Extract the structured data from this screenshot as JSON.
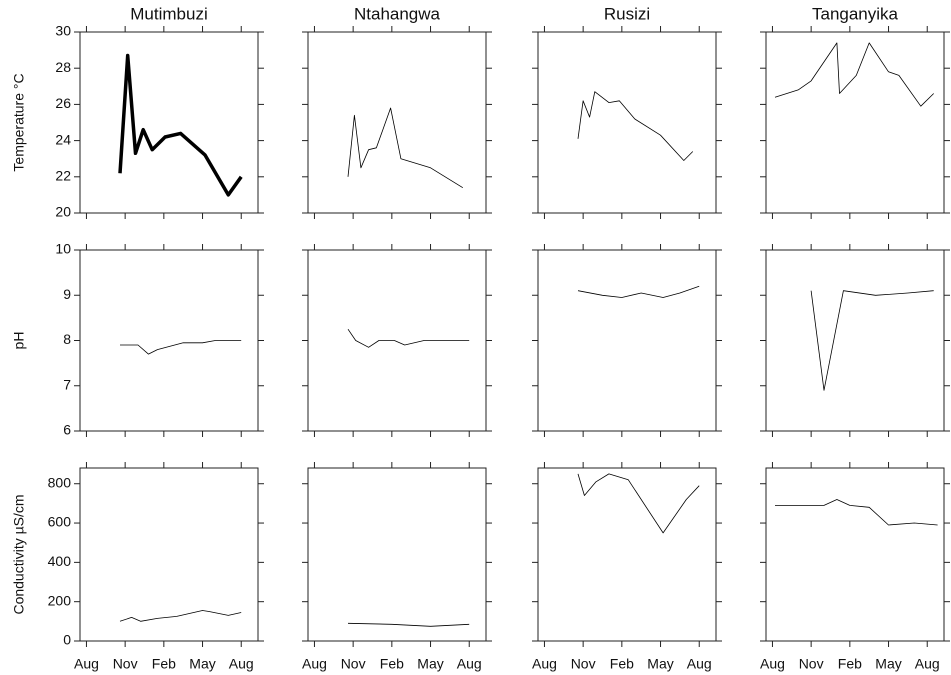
{
  "chart_data": [
    {
      "type": "line",
      "title": "Mutimbuzi",
      "ylabel": "Temperature °C",
      "x": [
        2.6,
        3.2,
        3.8,
        4.4,
        5.1,
        6.1,
        7.3,
        9.2,
        11.0,
        12.0
      ],
      "values": [
        22.2,
        28.7,
        23.3,
        24.6,
        23.5,
        24.2,
        24.4,
        23.2,
        21.0,
        22.0
      ],
      "color": "#000000",
      "linewidth": 3.5,
      "xlim": [
        -0.5,
        13.3
      ],
      "ylim": [
        20,
        30
      ],
      "xticks": [
        0,
        3,
        6,
        9,
        12
      ],
      "yticks": [
        20,
        22,
        24,
        26,
        28,
        30
      ],
      "ytick_labels": true
    },
    {
      "type": "line",
      "title": "Ntahangwa",
      "x": [
        2.6,
        3.1,
        3.6,
        4.2,
        4.8,
        5.9,
        6.7,
        9.0,
        11.5
      ],
      "values": [
        22.0,
        25.4,
        22.5,
        23.5,
        23.6,
        25.8,
        23.0,
        22.5,
        21.4
      ],
      "color": "#000000",
      "linewidth": 0.8,
      "xlim": [
        -0.5,
        13.3
      ],
      "ylim": [
        20,
        30
      ],
      "xticks": [
        0,
        3,
        6,
        9,
        12
      ],
      "yticks": [
        20,
        22,
        24,
        26,
        28,
        30
      ],
      "ytick_labels": false
    },
    {
      "type": "line",
      "title": "Rusizi",
      "x": [
        2.6,
        3.0,
        3.5,
        3.9,
        5.0,
        5.8,
        7.0,
        9.0,
        10.8,
        11.5
      ],
      "values": [
        24.1,
        26.2,
        25.3,
        26.7,
        26.1,
        26.2,
        25.2,
        24.3,
        22.9,
        23.4
      ],
      "color": "#000000",
      "linewidth": 0.8,
      "xlim": [
        -0.5,
        13.3
      ],
      "ylim": [
        20,
        30
      ],
      "xticks": [
        0,
        3,
        6,
        9,
        12
      ],
      "yticks": [
        20,
        22,
        24,
        26,
        28,
        30
      ],
      "ytick_labels": false
    },
    {
      "type": "line",
      "title": "Tanganyika",
      "x": [
        0.2,
        2.0,
        3.0,
        5.0,
        5.2,
        6.5,
        7.5,
        9.0,
        9.8,
        11.5,
        12.5
      ],
      "values": [
        26.4,
        26.8,
        27.3,
        29.4,
        26.6,
        27.6,
        29.4,
        27.8,
        27.6,
        25.9,
        26.6
      ],
      "color": "#000000",
      "linewidth": 0.8,
      "xlim": [
        -0.5,
        13.3
      ],
      "ylim": [
        20,
        30
      ],
      "xticks": [
        0,
        3,
        6,
        9,
        12
      ],
      "yticks": [
        20,
        22,
        24,
        26,
        28,
        30
      ],
      "ytick_labels": false
    },
    {
      "type": "line",
      "ylabel": "pH",
      "x": [
        2.6,
        4.0,
        4.8,
        5.5,
        7.5,
        9.0,
        10.0,
        12.0
      ],
      "values": [
        7.9,
        7.9,
        7.7,
        7.8,
        7.95,
        7.95,
        8.0,
        8.0
      ],
      "color": "#000000",
      "linewidth": 0.8,
      "xlim": [
        -0.5,
        13.3
      ],
      "ylim": [
        6,
        10
      ],
      "xticks": [
        0,
        3,
        6,
        9,
        12
      ],
      "yticks": [
        6,
        7,
        8,
        9,
        10
      ],
      "ytick_labels": true
    },
    {
      "type": "line",
      "x": [
        2.6,
        3.2,
        4.2,
        5.0,
        6.2,
        7.0,
        8.5,
        10.0,
        12.0
      ],
      "values": [
        8.25,
        8.0,
        7.85,
        8.0,
        8.0,
        7.9,
        8.0,
        8.0,
        8.0
      ],
      "color": "#000000",
      "linewidth": 0.8,
      "xlim": [
        -0.5,
        13.3
      ],
      "ylim": [
        6,
        10
      ],
      "xticks": [
        0,
        3,
        6,
        9,
        12
      ],
      "yticks": [
        6,
        7,
        8,
        9,
        10
      ],
      "ytick_labels": false
    },
    {
      "type": "line",
      "x": [
        2.6,
        4.5,
        6.0,
        7.5,
        9.2,
        10.5,
        12.0
      ],
      "values": [
        9.1,
        9.0,
        8.95,
        9.05,
        8.95,
        9.05,
        9.2
      ],
      "color": "#000000",
      "linewidth": 0.8,
      "xlim": [
        -0.5,
        13.3
      ],
      "ylim": [
        6,
        10
      ],
      "xticks": [
        0,
        3,
        6,
        9,
        12
      ],
      "yticks": [
        6,
        7,
        8,
        9,
        10
      ],
      "ytick_labels": false
    },
    {
      "type": "line",
      "x": [
        3.0,
        4.0,
        5.5,
        8.0,
        10.5,
        12.5
      ],
      "values": [
        9.1,
        6.9,
        9.1,
        9.0,
        9.05,
        9.1
      ],
      "color": "#000000",
      "linewidth": 0.8,
      "xlim": [
        -0.5,
        13.3
      ],
      "ylim": [
        6,
        10
      ],
      "xticks": [
        0,
        3,
        6,
        9,
        12
      ],
      "yticks": [
        6,
        7,
        8,
        9,
        10
      ],
      "ytick_labels": false
    },
    {
      "type": "line",
      "ylabel": "Conductivity µS/cm",
      "x": [
        2.6,
        3.5,
        4.2,
        5.5,
        7.0,
        9.0,
        9.5,
        11.0,
        12.0
      ],
      "values": [
        100,
        120,
        100,
        115,
        125,
        155,
        150,
        130,
        145
      ],
      "color": "#000000",
      "linewidth": 0.8,
      "xlim": [
        -0.5,
        13.3
      ],
      "ylim": [
        0,
        880
      ],
      "xticks": [
        {
          "value": 0,
          "label": "Aug"
        },
        {
          "value": 3,
          "label": "Nov"
        },
        {
          "value": 6,
          "label": "Feb"
        },
        {
          "value": 9,
          "label": "May"
        },
        {
          "value": 12,
          "label": "Aug"
        }
      ],
      "yticks": [
        0,
        200,
        400,
        600,
        800
      ],
      "ytick_labels": true
    },
    {
      "type": "line",
      "x": [
        2.6,
        6.0,
        9.0,
        12.0
      ],
      "values": [
        90,
        85,
        75,
        85
      ],
      "color": "#000000",
      "linewidth": 0.8,
      "xlim": [
        -0.5,
        13.3
      ],
      "ylim": [
        0,
        880
      ],
      "xticks": [
        {
          "value": 0,
          "label": "Aug"
        },
        {
          "value": 3,
          "label": "Nov"
        },
        {
          "value": 6,
          "label": "Feb"
        },
        {
          "value": 9,
          "label": "May"
        },
        {
          "value": 12,
          "label": "Aug"
        }
      ],
      "yticks": [
        0,
        200,
        400,
        600,
        800
      ],
      "ytick_labels": false
    },
    {
      "type": "line",
      "x": [
        2.6,
        3.1,
        4.0,
        5.0,
        6.5,
        9.2,
        11.0,
        12.0
      ],
      "values": [
        850,
        740,
        810,
        850,
        820,
        550,
        720,
        790
      ],
      "color": "#000000",
      "linewidth": 0.8,
      "xlim": [
        -0.5,
        13.3
      ],
      "ylim": [
        0,
        880
      ],
      "xticks": [
        {
          "value": 0,
          "label": "Aug"
        },
        {
          "value": 3,
          "label": "Nov"
        },
        {
          "value": 6,
          "label": "Feb"
        },
        {
          "value": 9,
          "label": "May"
        },
        {
          "value": 12,
          "label": "Aug"
        }
      ],
      "yticks": [
        0,
        200,
        400,
        600,
        800
      ],
      "ytick_labels": false
    },
    {
      "type": "line",
      "x": [
        0.2,
        4.0,
        5.0,
        6.0,
        7.5,
        9.0,
        11.0,
        12.8
      ],
      "values": [
        690,
        690,
        720,
        690,
        680,
        590,
        600,
        590
      ],
      "color": "#000000",
      "linewidth": 0.8,
      "xlim": [
        -0.5,
        13.3
      ],
      "ylim": [
        0,
        880
      ],
      "xticks": [
        {
          "value": 0,
          "label": "Aug"
        },
        {
          "value": 3,
          "label": "Nov"
        },
        {
          "value": 6,
          "label": "Feb"
        },
        {
          "value": 9,
          "label": "May"
        },
        {
          "value": 12,
          "label": "Aug"
        }
      ],
      "yticks": [
        0,
        200,
        400,
        600,
        800
      ],
      "ytick_labels": false
    }
  ]
}
